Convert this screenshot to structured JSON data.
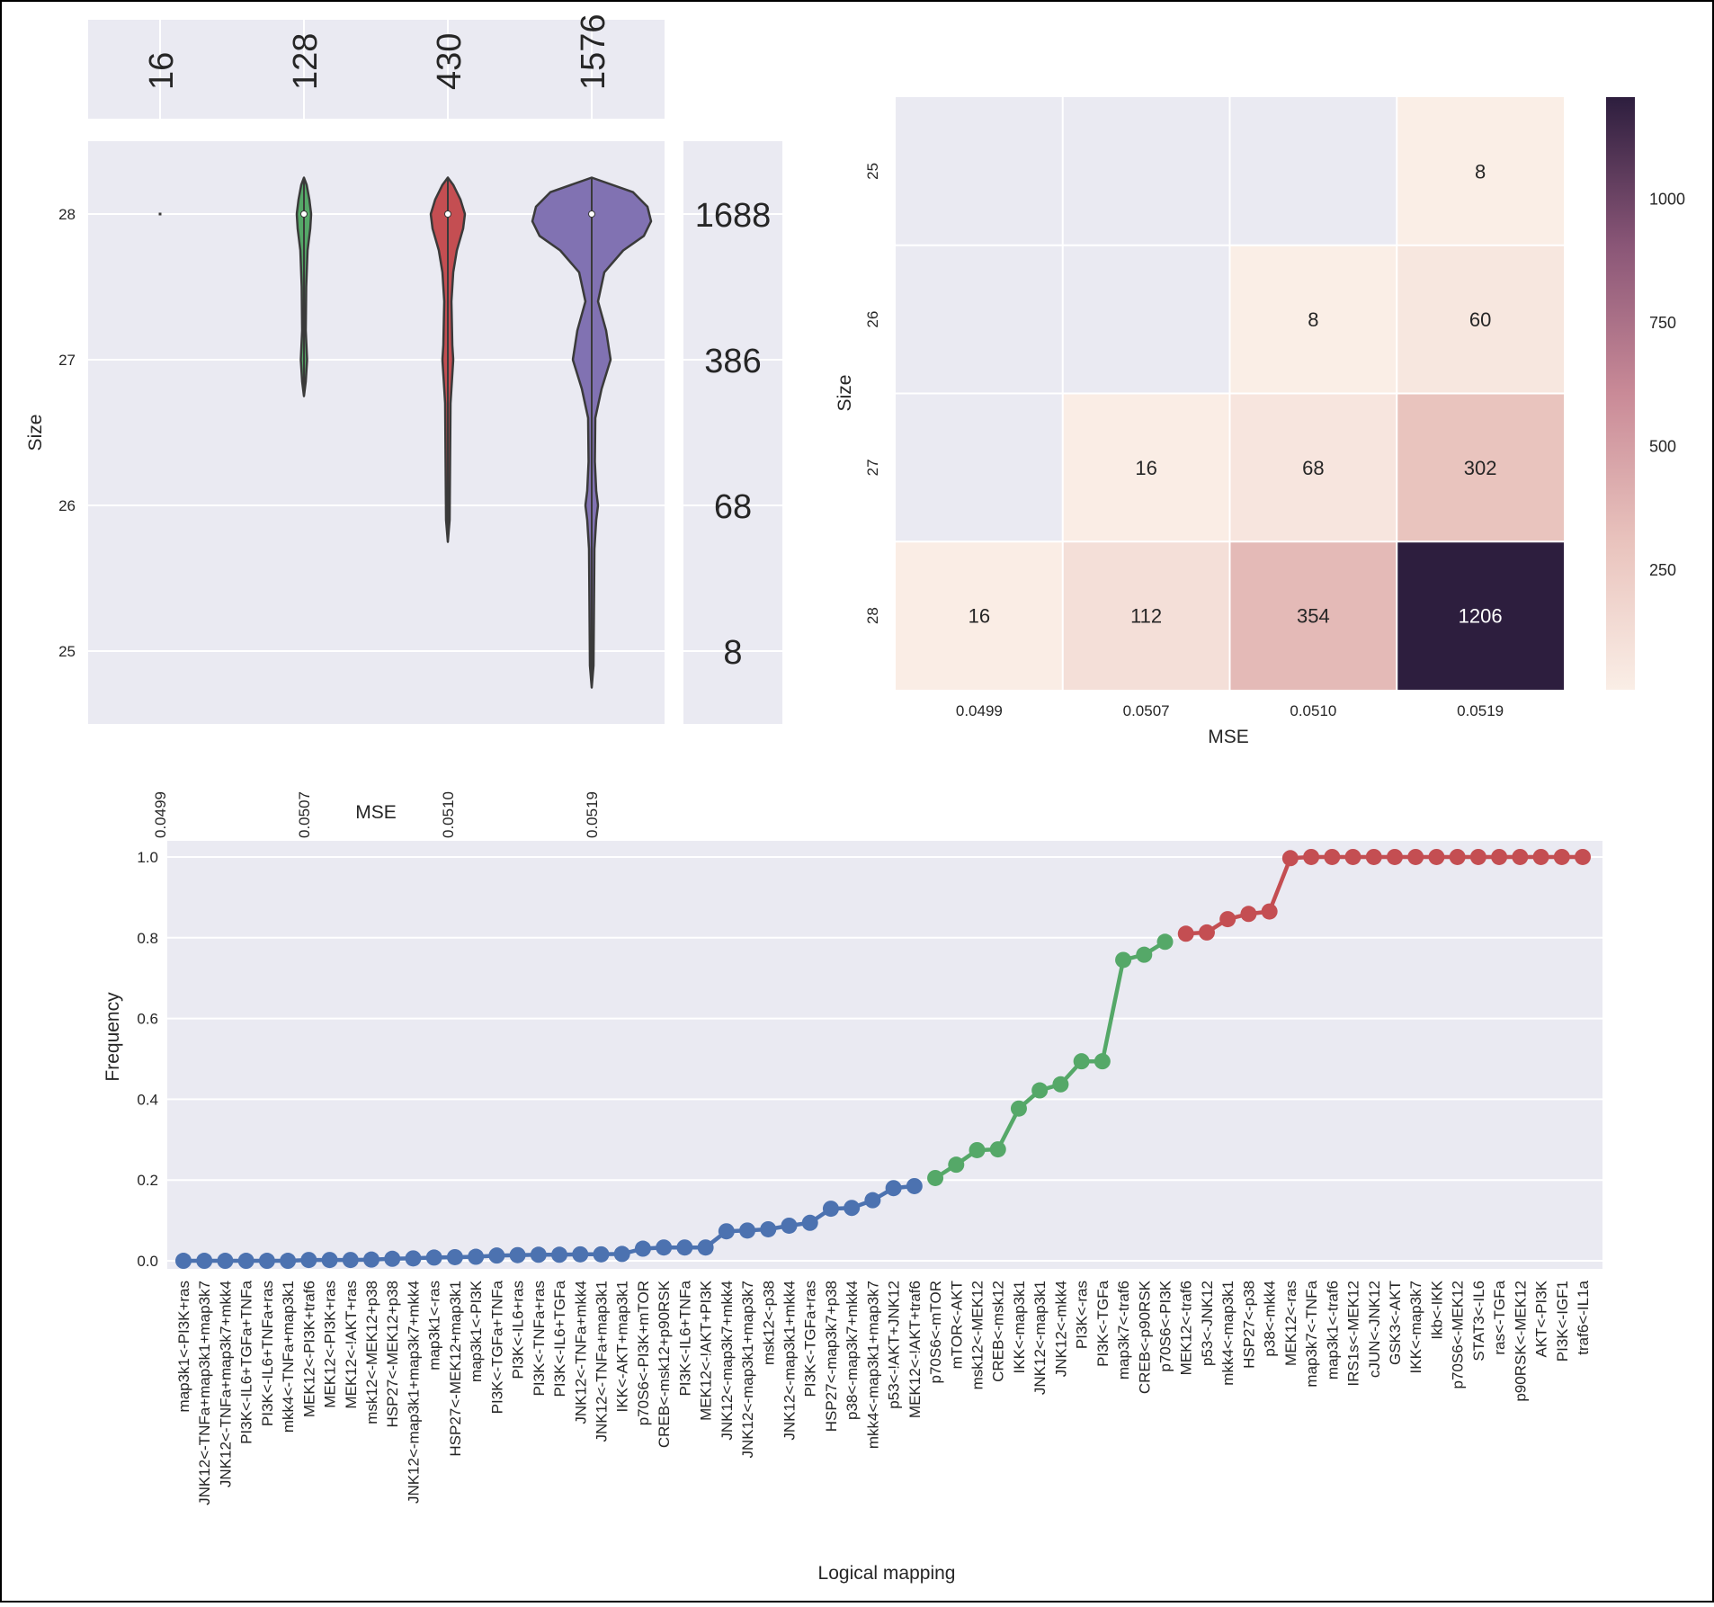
{
  "chart_data": [
    {
      "type": "violin",
      "xlabel": "MSE",
      "ylabel": "Size",
      "categories": [
        "0.0499",
        "0.0507",
        "0.0510",
        "0.0519"
      ],
      "colors": [
        "#4c72b0",
        "#55a868",
        "#c44e52",
        "#8172b2"
      ],
      "ylim": [
        24.5,
        28.5
      ],
      "yticks": [
        25,
        26,
        27,
        28
      ],
      "medians": [
        28,
        28,
        28,
        28
      ],
      "violin_ranges": [
        [
          28,
          28
        ],
        [
          26.75,
          28.25
        ],
        [
          25.75,
          28.25
        ],
        [
          24.75,
          28.25
        ]
      ],
      "top_marginal_counts": [
        "16",
        "128",
        "430",
        "1576"
      ],
      "right_marginal_counts": [
        {
          "size": 28,
          "count": "1688"
        },
        {
          "size": 27,
          "count": "386"
        },
        {
          "size": 26,
          "count": "68"
        },
        {
          "size": 25,
          "count": "8"
        }
      ]
    },
    {
      "type": "heatmap",
      "xlabel": "MSE",
      "ylabel": "Size",
      "x_categories": [
        "0.0499",
        "0.0507",
        "0.0510",
        "0.0519"
      ],
      "y_categories": [
        "25",
        "26",
        "27",
        "28"
      ],
      "values": [
        [
          null,
          null,
          null,
          8
        ],
        [
          null,
          null,
          8,
          60
        ],
        [
          null,
          16,
          68,
          302
        ],
        [
          16,
          112,
          354,
          1206
        ]
      ],
      "colorbar_ticks": [
        "250",
        "500",
        "750",
        "1000"
      ],
      "colorbar_range": [
        8,
        1206
      ]
    },
    {
      "type": "line",
      "xlabel": "Logical mapping",
      "ylabel": "Frequency",
      "ylim": [
        -0.02,
        1.04
      ],
      "yticks": [
        "0.0",
        "0.2",
        "0.4",
        "0.6",
        "0.8",
        "1.0"
      ],
      "group_colors": [
        "#4c72b0",
        "#55a868",
        "#c44e52"
      ],
      "groups": [
        {
          "color": "#4c72b0",
          "points": [
            {
              "label": "map3k1<-PI3K+ras",
              "value": 0.0
            },
            {
              "label": "JNK12<-TNFa+map3k1+map3k7",
              "value": 0.0
            },
            {
              "label": "JNK12<-TNFa+map3k7+mkk4",
              "value": 0.0
            },
            {
              "label": "PI3K<-IL6+TGFa+TNFa",
              "value": 0.0
            },
            {
              "label": "PI3K<-IL6+TNFa+ras",
              "value": 0.0
            },
            {
              "label": "mkk4<-TNFa+map3k1",
              "value": 0.0
            },
            {
              "label": "MEK12<-PI3K+traf6",
              "value": 0.002
            },
            {
              "label": "MEK12<-PI3K+ras",
              "value": 0.002
            },
            {
              "label": "MEK12<-!AKT+ras",
              "value": 0.002
            },
            {
              "label": "msk12<-MEK12+p38",
              "value": 0.003
            },
            {
              "label": "HSP27<-MEK12+p38",
              "value": 0.005
            },
            {
              "label": "JNK12<-map3k1+map3k7+mkk4",
              "value": 0.006
            },
            {
              "label": "map3k1<-ras",
              "value": 0.008
            },
            {
              "label": "HSP27<-MEK12+map3k1",
              "value": 0.009
            },
            {
              "label": "map3k1<-PI3K",
              "value": 0.01
            },
            {
              "label": "PI3K<-TGFa+TNFa",
              "value": 0.013
            },
            {
              "label": "PI3K<-IL6+ras",
              "value": 0.014
            },
            {
              "label": "PI3K<-TNFa+ras",
              "value": 0.015
            },
            {
              "label": "PI3K<-IL6+TGFa",
              "value": 0.015
            },
            {
              "label": "JNK12<-TNFa+mkk4",
              "value": 0.016
            },
            {
              "label": "JNK12<-TNFa+map3k1",
              "value": 0.016
            },
            {
              "label": "IKK<-AKT+map3k1",
              "value": 0.017
            },
            {
              "label": "p70S6<-PI3K+mTOR",
              "value": 0.03
            },
            {
              "label": "CREB<-msk12+p90RSK",
              "value": 0.033
            },
            {
              "label": "PI3K<-IL6+TNFa",
              "value": 0.033
            },
            {
              "label": "MEK12<-!AKT+PI3K",
              "value": 0.033
            },
            {
              "label": "JNK12<-map3k7+mkk4",
              "value": 0.073
            },
            {
              "label": "JNK12<-map3k1+map3k7",
              "value": 0.075
            },
            {
              "label": "msk12<-p38",
              "value": 0.078
            },
            {
              "label": "JNK12<-map3k1+mkk4",
              "value": 0.087
            },
            {
              "label": "PI3K<-TGFa+ras",
              "value": 0.094
            },
            {
              "label": "HSP27<-map3k7+p38",
              "value": 0.129
            },
            {
              "label": "p38<-map3k7+mkk4",
              "value": 0.131
            },
            {
              "label": "mkk4<-map3k1+map3k7",
              "value": 0.15
            },
            {
              "label": "p53<-!AKT+JNK12",
              "value": 0.18
            },
            {
              "label": "MEK12<-!AKT+traf6",
              "value": 0.185
            }
          ]
        },
        {
          "color": "#55a868",
          "points": [
            {
              "label": "p70S6<-mTOR",
              "value": 0.205
            },
            {
              "label": "mTOR<-AKT",
              "value": 0.238
            },
            {
              "label": "msk12<-MEK12",
              "value": 0.274
            },
            {
              "label": "CREB<-msk12",
              "value": 0.276
            },
            {
              "label": "IKK<-map3k1",
              "value": 0.377
            },
            {
              "label": "JNK12<-map3k1",
              "value": 0.422
            },
            {
              "label": "JNK12<-mkk4",
              "value": 0.437
            },
            {
              "label": "PI3K<-ras",
              "value": 0.494
            },
            {
              "label": "PI3K<-TGFa",
              "value": 0.494
            },
            {
              "label": "map3k7<-traf6",
              "value": 0.745
            },
            {
              "label": "CREB<-p90RSK",
              "value": 0.758
            },
            {
              "label": "p70S6<-PI3K",
              "value": 0.79
            }
          ]
        },
        {
          "color": "#c44e52",
          "points": [
            {
              "label": "MEK12<-traf6",
              "value": 0.81
            },
            {
              "label": "p53<-JNK12",
              "value": 0.813
            },
            {
              "label": "mkk4<-map3k1",
              "value": 0.846
            },
            {
              "label": "HSP27<-p38",
              "value": 0.859
            },
            {
              "label": "p38<-mkk4",
              "value": 0.865
            },
            {
              "label": "MEK12<-ras",
              "value": 0.997
            },
            {
              "label": "map3k7<-TNFa",
              "value": 1.0
            },
            {
              "label": "map3k1<-traf6",
              "value": 1.0
            },
            {
              "label": "IRS1s<-MEK12",
              "value": 1.0
            },
            {
              "label": "cJUN<-JNK12",
              "value": 1.0
            },
            {
              "label": "GSK3<-AKT",
              "value": 1.0
            },
            {
              "label": "IKK<-map3k7",
              "value": 1.0
            },
            {
              "label": "Ikb<-IKK",
              "value": 1.0
            },
            {
              "label": "p70S6<-MEK12",
              "value": 1.0
            },
            {
              "label": "STAT3<-IL6",
              "value": 1.0
            },
            {
              "label": "ras<-TGFa",
              "value": 1.0
            },
            {
              "label": "p90RSK<-MEK12",
              "value": 1.0
            },
            {
              "label": "AKT<-PI3K",
              "value": 1.0
            },
            {
              "label": "PI3K<-IGF1",
              "value": 1.0
            },
            {
              "label": "traf6<-IL1a",
              "value": 1.0
            }
          ]
        }
      ]
    }
  ]
}
